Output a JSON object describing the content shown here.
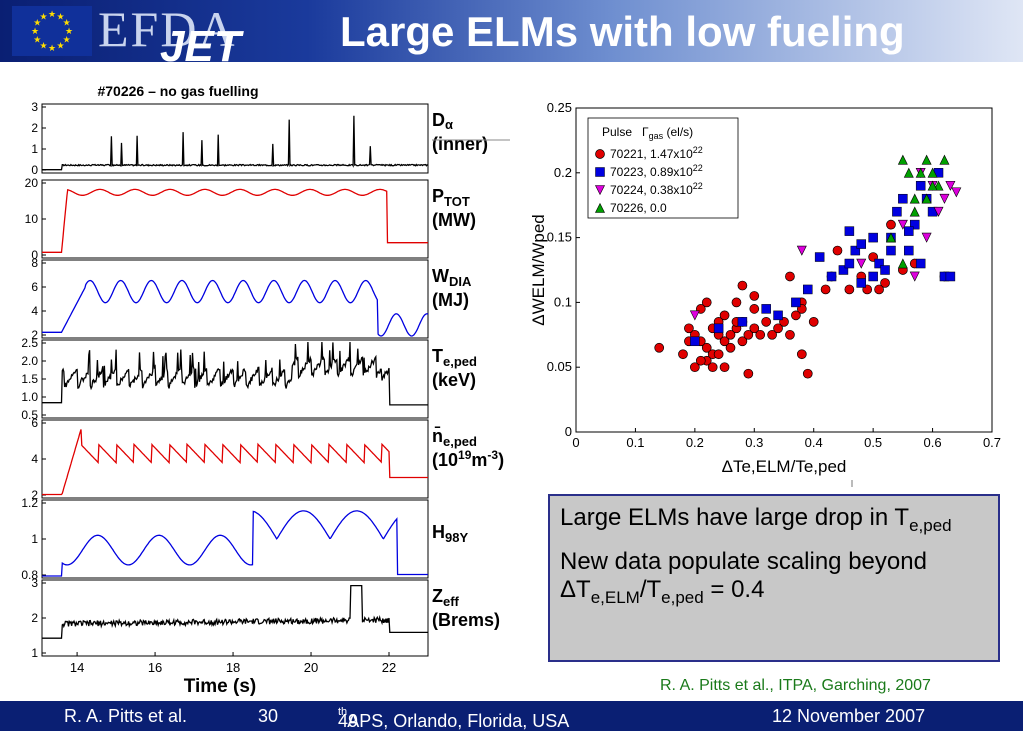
{
  "header": {
    "logo_efda": "EFDA",
    "logo_jet": "JET",
    "title": "Large ELMs with low fueling",
    "flag_color": "#10309a",
    "star_color": "#ffdd00"
  },
  "left_panel": {
    "shot_title": "#70226 – no gas fuelling",
    "time_label": "Time (s)",
    "x_ticks": [
      "14",
      "16",
      "18",
      "20",
      "22"
    ],
    "panels": [
      {
        "id": "dalpha",
        "label_main": "D",
        "label_greek": "α",
        "label_line2": "(inner)",
        "color": "#000000",
        "y_ticks": [
          "3",
          "2",
          "1",
          "0"
        ]
      },
      {
        "id": "ptot",
        "label_main": "P",
        "label_sub": "TOT",
        "label_line2": "(MW)",
        "color": "#e00000",
        "y_ticks": [
          "20",
          "10",
          "0"
        ]
      },
      {
        "id": "wdia",
        "label_main": "W",
        "label_sub": "DIA",
        "label_line2": "(MJ)",
        "color": "#0000e0",
        "y_ticks": [
          "8",
          "6",
          "4",
          "2"
        ]
      },
      {
        "id": "teped",
        "label_main": "T",
        "label_sub": "e,ped",
        "label_line2": "(keV)",
        "color": "#000000",
        "y_ticks": [
          "2.5",
          "2.0",
          "1.5",
          "1.0",
          "0.5"
        ]
      },
      {
        "id": "neped",
        "label_main": "n̄",
        "label_sub": "e,ped",
        "label_line2_a": "(10",
        "label_line2_sup": "19",
        "label_line2_b": "m",
        "label_line2_sup2": "-3",
        "label_line2_c": ")",
        "color": "#e00000",
        "y_ticks": [
          "6",
          "4",
          "2"
        ]
      },
      {
        "id": "h98",
        "label_main": "H",
        "label_sub": "98Y",
        "color": "#0000e0",
        "y_ticks": [
          "1.2",
          "1",
          "0.8"
        ]
      },
      {
        "id": "zeff",
        "label_main": "Z",
        "label_sub": "eff",
        "label_line2": "(Brems)",
        "color": "#000000",
        "y_ticks": [
          "3",
          "2",
          "1"
        ]
      }
    ]
  },
  "chart_data": {
    "type": "scatter",
    "xlabel": "ΔTe,ELM/Te,ped",
    "ylabel": "ΔWELM/Wped",
    "xlim": [
      0,
      0.7
    ],
    "ylim": [
      0,
      0.25
    ],
    "x_ticks": [
      "0",
      "0.1",
      "0.2",
      "0.3",
      "0.4",
      "0.5",
      "0.6",
      "0.7"
    ],
    "y_ticks": [
      "0",
      "0.05",
      "0.1",
      "0.15",
      "0.2",
      "0.25"
    ],
    "legend": {
      "position": "top-left",
      "header_a": "Pulse",
      "header_b": "Γ",
      "header_b_sub": "gas",
      "header_b_rest": " (el/s)"
    },
    "series": [
      {
        "name": "70221, 1.47x10",
        "name_sup": "22",
        "marker": "circle",
        "color": "#e00000",
        "x": [
          0.14,
          0.18,
          0.19,
          0.2,
          0.21,
          0.22,
          0.22,
          0.23,
          0.23,
          0.24,
          0.24,
          0.25,
          0.25,
          0.26,
          0.26,
          0.27,
          0.27,
          0.28,
          0.28,
          0.29,
          0.3,
          0.3,
          0.31,
          0.32,
          0.33,
          0.34,
          0.35,
          0.36,
          0.37,
          0.38,
          0.38,
          0.39,
          0.25,
          0.2,
          0.22,
          0.27,
          0.3,
          0.24,
          0.23,
          0.21,
          0.19,
          0.29,
          0.36,
          0.4,
          0.42,
          0.44,
          0.46,
          0.48,
          0.5,
          0.51,
          0.52,
          0.53,
          0.55,
          0.57,
          0.62,
          0.38,
          0.49,
          0.43,
          0.28,
          0.21
        ],
        "y": [
          0.065,
          0.06,
          0.08,
          0.075,
          0.07,
          0.065,
          0.055,
          0.06,
          0.08,
          0.075,
          0.085,
          0.07,
          0.09,
          0.065,
          0.075,
          0.08,
          0.1,
          0.07,
          0.085,
          0.075,
          0.08,
          0.095,
          0.075,
          0.085,
          0.075,
          0.08,
          0.085,
          0.075,
          0.09,
          0.1,
          0.06,
          0.045,
          0.05,
          0.05,
          0.1,
          0.085,
          0.105,
          0.06,
          0.05,
          0.055,
          0.07,
          0.045,
          0.12,
          0.085,
          0.11,
          0.14,
          0.11,
          0.12,
          0.135,
          0.11,
          0.115,
          0.16,
          0.125,
          0.13,
          0.12,
          0.095,
          0.11,
          0.12,
          0.113,
          0.095
        ]
      },
      {
        "name": "70223, 0.89x10",
        "name_sup": "22",
        "marker": "square",
        "color": "#0000e0",
        "x": [
          0.2,
          0.24,
          0.28,
          0.32,
          0.34,
          0.37,
          0.39,
          0.41,
          0.43,
          0.45,
          0.46,
          0.47,
          0.48,
          0.5,
          0.51,
          0.52,
          0.53,
          0.54,
          0.55,
          0.56,
          0.57,
          0.58,
          0.59,
          0.6,
          0.61,
          0.62,
          0.63,
          0.58,
          0.56,
          0.53,
          0.5,
          0.48,
          0.46
        ],
        "y": [
          0.07,
          0.08,
          0.085,
          0.095,
          0.09,
          0.1,
          0.11,
          0.135,
          0.12,
          0.125,
          0.13,
          0.14,
          0.145,
          0.15,
          0.13,
          0.125,
          0.14,
          0.17,
          0.18,
          0.14,
          0.16,
          0.19,
          0.18,
          0.17,
          0.2,
          0.12,
          0.12,
          0.13,
          0.155,
          0.15,
          0.12,
          0.115,
          0.155
        ]
      },
      {
        "name": "70224, 0.38x10",
        "name_sup": "22",
        "marker": "triangle-down",
        "color": "#dd00dd",
        "x": [
          0.2,
          0.38,
          0.57,
          0.58,
          0.6,
          0.62,
          0.63,
          0.64,
          0.59,
          0.61,
          0.55,
          0.48
        ],
        "y": [
          0.09,
          0.14,
          0.12,
          0.2,
          0.19,
          0.18,
          0.19,
          0.185,
          0.15,
          0.17,
          0.16,
          0.13
        ]
      },
      {
        "name": "70226, 0.0",
        "marker": "triangle-up",
        "color": "#00a000",
        "x": [
          0.55,
          0.56,
          0.57,
          0.58,
          0.59,
          0.6,
          0.61,
          0.62,
          0.57,
          0.59,
          0.6,
          0.53,
          0.55
        ],
        "y": [
          0.21,
          0.2,
          0.18,
          0.2,
          0.21,
          0.2,
          0.19,
          0.21,
          0.17,
          0.18,
          0.19,
          0.15,
          0.13
        ]
      }
    ]
  },
  "callout": {
    "line1": "Large ELMs have large drop in T",
    "line1_sub": "e,ped",
    "line2_a": "New data populate scaling beyond ΔT",
    "line2_sub1": "e,ELM",
    "line2_b": "/T",
    "line2_sub2": "e,ped",
    "line2_c": " = 0.4"
  },
  "credit": "R. A. Pitts et al., ITPA, Garching, 2007",
  "footer": {
    "author": "R. A. Pitts et al.",
    "page": "30",
    "conf_num": "49",
    "conf_sup": "th",
    "conf_rest": " APS, Orlando, Florida, USA",
    "date": "12 November 2007"
  }
}
